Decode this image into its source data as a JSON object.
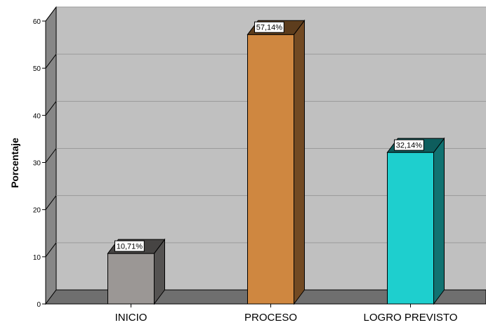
{
  "chart_data": {
    "type": "bar",
    "style": "3d",
    "categories": [
      "INICIO",
      "PROCESO",
      "LOGRO PREVISTO"
    ],
    "values": [
      10.71,
      57.14,
      32.14
    ],
    "data_labels": [
      "10,71%",
      "57,14%",
      "32,14%"
    ],
    "colors": [
      "#9b9795",
      "#cf8740",
      "#1ecfce"
    ],
    "xlabel": "",
    "ylabel": "Porcentaje",
    "ylim": [
      0,
      60
    ],
    "yticks": [
      0,
      10,
      20,
      30,
      40,
      50,
      60
    ],
    "grid": true,
    "legend": "none",
    "background": "#c0c0c0"
  }
}
